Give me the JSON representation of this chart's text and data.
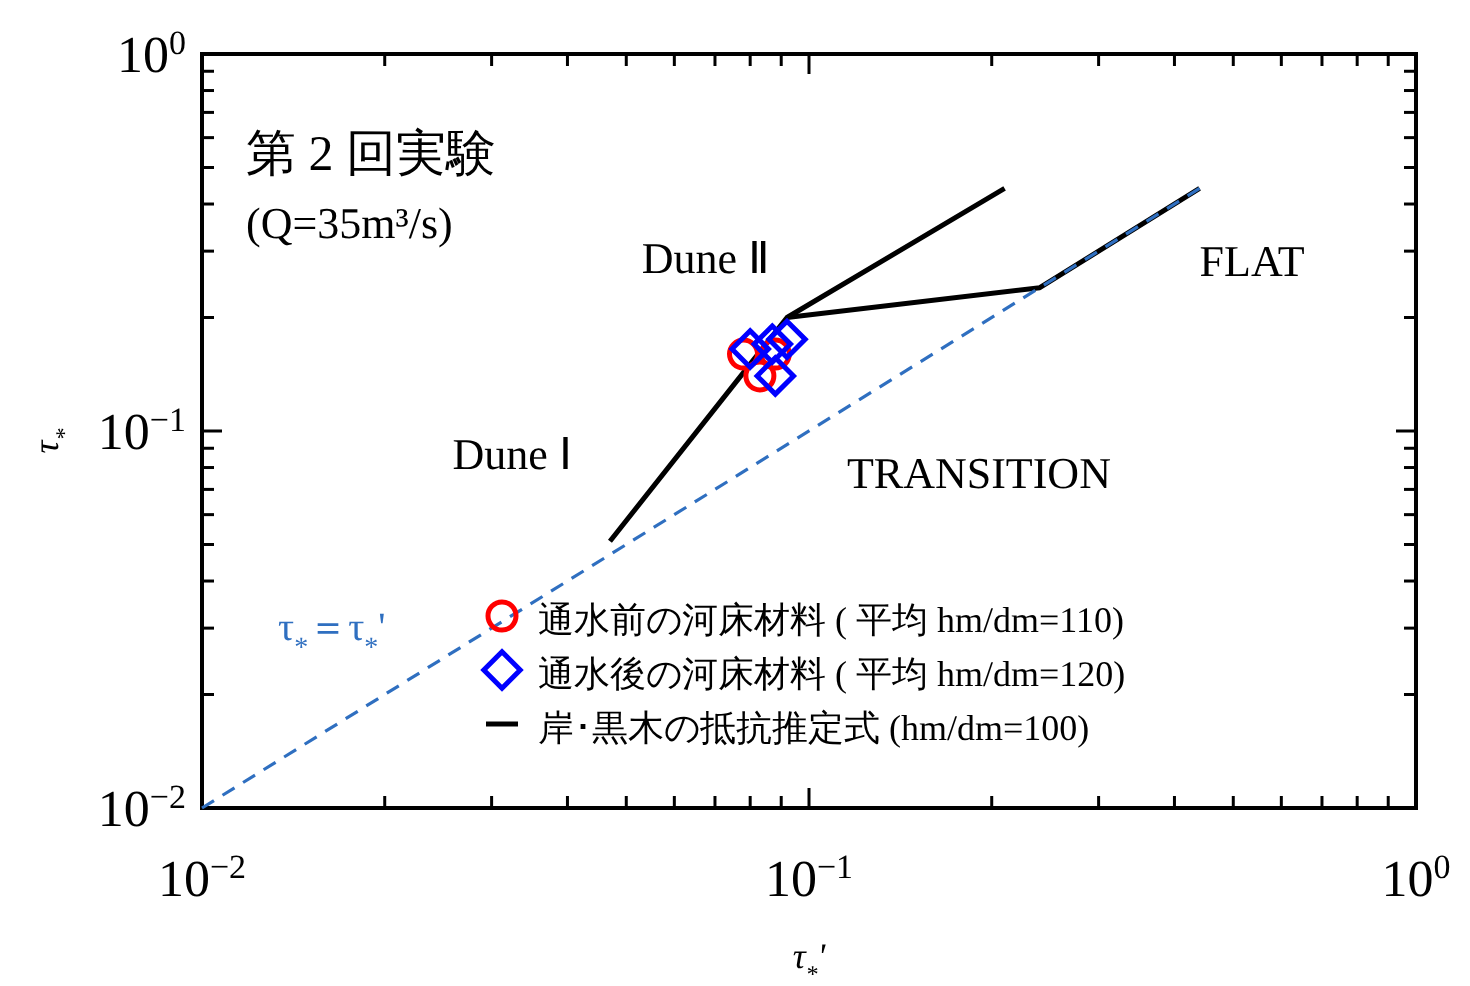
{
  "chart_data": {
    "type": "scatter",
    "title": "第 2 回実験",
    "subtitle": "(Q=35m³/s)",
    "xlabel": "τ$_{*}$'",
    "ylabel": "τ$_{*}$",
    "log": "xy",
    "xlim": [
      0.01,
      1
    ],
    "ylim": [
      0.01,
      1
    ],
    "xticks": [
      {
        "value": 0.01,
        "label": "10$^{−2}$"
      },
      {
        "value": 0.1,
        "label": "10$^{−1}$"
      },
      {
        "value": 1,
        "label": "10$^{0}$"
      }
    ],
    "yticks": [
      {
        "value": 0.01,
        "label": "10$^{−2}$"
      },
      {
        "value": 0.1,
        "label": "10$^{−1}$"
      },
      {
        "value": 1,
        "label": "10$^{0}$"
      }
    ],
    "grid": false,
    "legend": "bottom right",
    "series": [
      {
        "name": "通水前の河床材料 ( 平均 hm/dm=110)",
        "type": "scatter",
        "marker": "circle",
        "color": "#ff0000",
        "x": [
          0.078,
          0.083,
          0.088
        ],
        "values": [
          0.16,
          0.14,
          0.16
        ]
      },
      {
        "name": "通水後の河床材料 ( 平均 hm/dm=120)",
        "type": "scatter",
        "marker": "diamond",
        "color": "#0000ff",
        "x": [
          0.08,
          0.087,
          0.092,
          0.088
        ],
        "values": [
          0.165,
          0.17,
          0.175,
          0.14
        ]
      },
      {
        "name": "岸･黒木の抵抗推定式 (hm/dm=100)",
        "type": "line",
        "marker": "none",
        "color": "#000000",
        "x": [
          0.047,
          0.092,
          0.21
        ],
        "values": [
          0.051,
          0.2,
          0.44
        ]
      },
      {
        "type": "line",
        "marker": "none",
        "color": "#000000",
        "x": [
          0.092,
          0.24,
          0.44
        ],
        "values": [
          0.2,
          0.24,
          0.44
        ]
      },
      {
        "name": "τ$_{*}$＝τ$_{*}$'",
        "type": "line",
        "marker": "none",
        "line_style": "dashed",
        "color": "#2f6fc0",
        "x": [
          0.01,
          0.44
        ],
        "values": [
          0.01,
          0.44
        ]
      }
    ],
    "annotations": [
      "Dune Ⅱ",
      "Dune Ⅰ",
      "FLAT",
      "TRANSITION"
    ]
  }
}
